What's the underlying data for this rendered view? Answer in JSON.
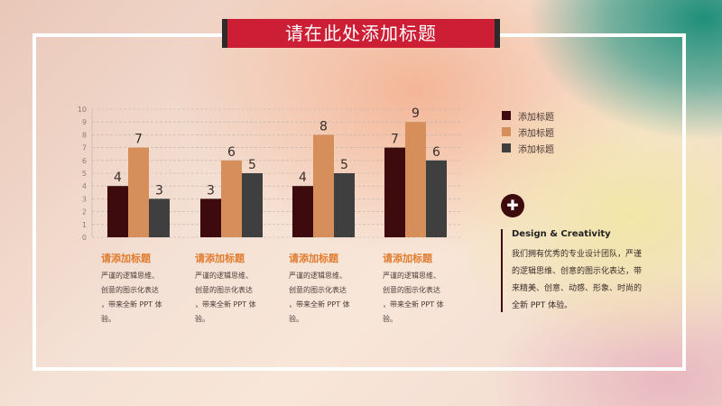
{
  "title": "请在此处添加标题",
  "colors": {
    "series1": "#3d0a0d",
    "series2": "#d68f5a",
    "series3": "#3f3f3f",
    "accent": "#cc1f36"
  },
  "chart_data": {
    "type": "bar",
    "categories": [
      "",
      "",
      "",
      ""
    ],
    "series": [
      {
        "name": "添加标题",
        "values": [
          4,
          3,
          4,
          7
        ]
      },
      {
        "name": "添加标题",
        "values": [
          7,
          6,
          8,
          9
        ]
      },
      {
        "name": "添加标题",
        "values": [
          3,
          5,
          5,
          6
        ]
      }
    ],
    "ylim": [
      0,
      10
    ],
    "yticks": [
      "0",
      "1",
      "2",
      "3",
      "4",
      "5",
      "6",
      "7",
      "8",
      "9",
      "10"
    ],
    "grid": true,
    "legend_position": "right"
  },
  "descriptions": [
    {
      "heading": "请添加标题",
      "body": [
        "严谨的逻辑思维、",
        "创意的图示化表达",
        "，带来全新 PPT 体",
        "验。"
      ]
    },
    {
      "heading": "请添加标题",
      "body": [
        "严谨的逻辑思维、",
        "创意的图示化表达",
        "，带来全新 PPT 体",
        "验。"
      ]
    },
    {
      "heading": "请添加标题",
      "body": [
        "严谨的逻辑思维、",
        "创意的图示化表达",
        "，带来全新 PPT 体",
        "验。"
      ]
    },
    {
      "heading": "请添加标题",
      "body": [
        "严谨的逻辑思维、",
        "创意的图示化表达",
        "，带来全新 PPT 体",
        "验。"
      ]
    }
  ],
  "panel": {
    "icon": "plus-icon",
    "symbol": "✚",
    "heading": "Design & Creativity",
    "body": [
      "我们拥有优秀的专业设计团队，严谨",
      "的逻辑思维、创意的图示化表达，带",
      "来精美、创意、动感、形象、时尚的",
      "全新 PPT 体验。"
    ]
  }
}
